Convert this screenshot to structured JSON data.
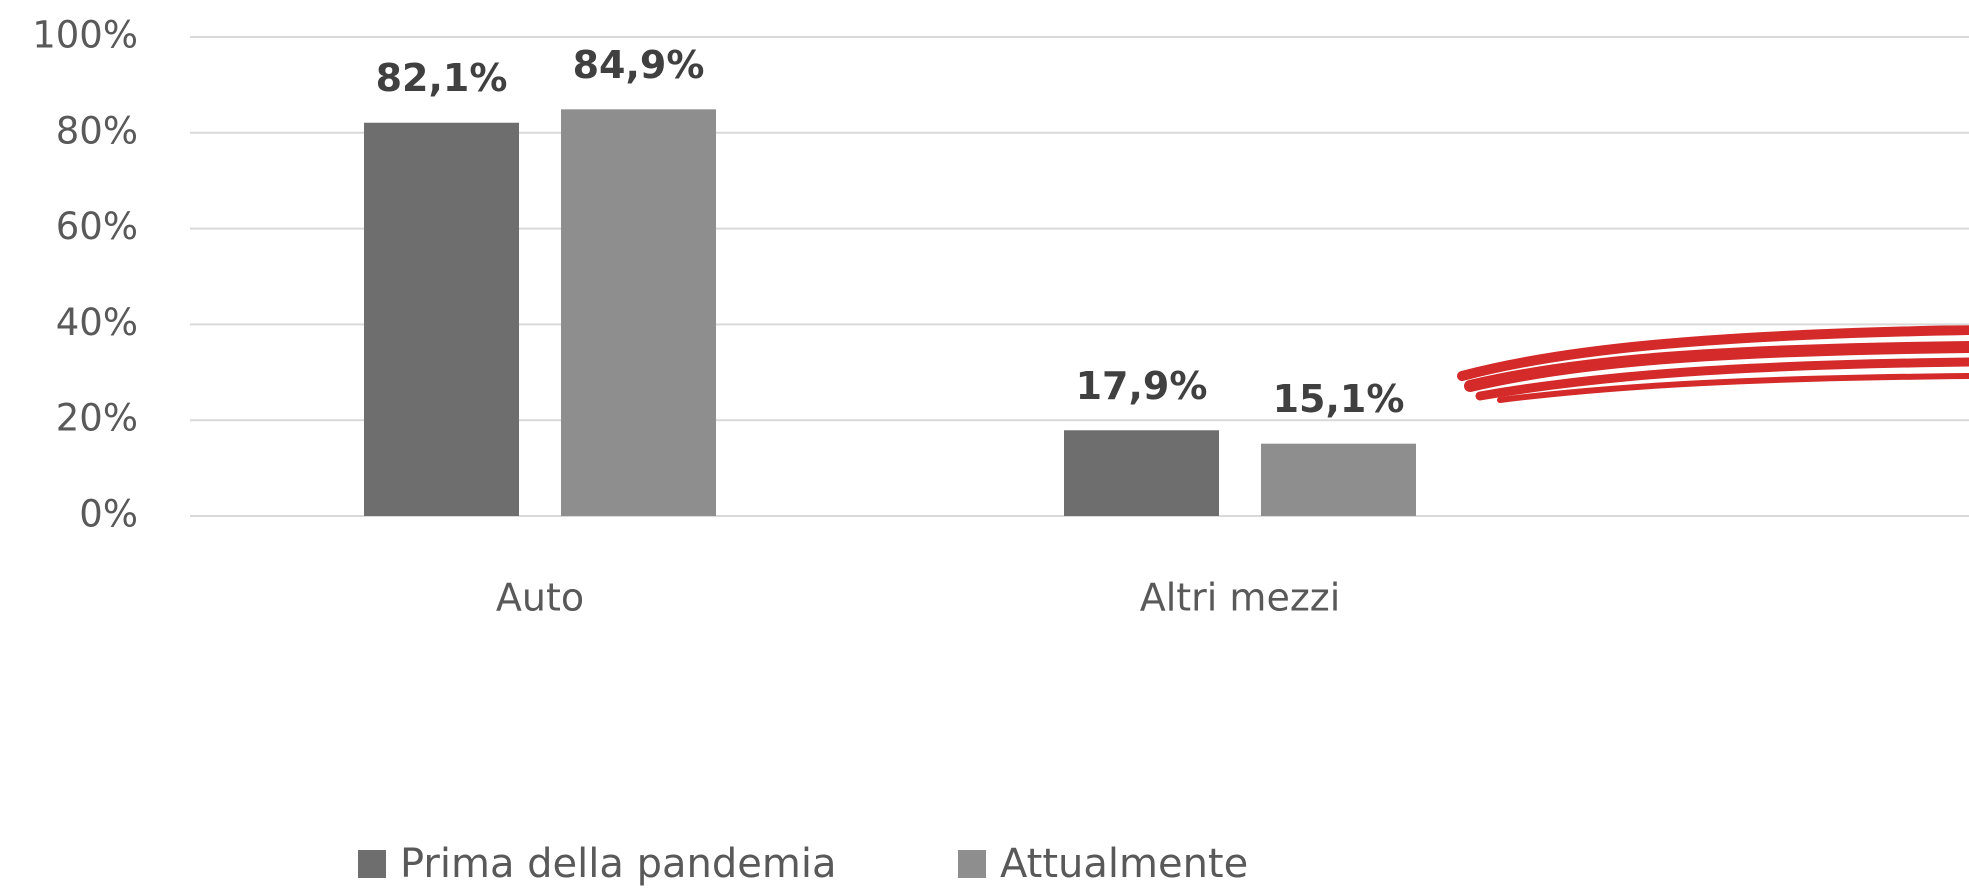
{
  "chart_data": {
    "type": "bar",
    "categories": [
      "Auto",
      "Altri mezzi"
    ],
    "series": [
      {
        "name": "Prima della pandemia",
        "color": "#6e6e6e",
        "values": [
          82.1,
          17.9
        ],
        "value_labels": [
          "82,1%",
          "17,9%"
        ]
      },
      {
        "name": "Attualmente",
        "color": "#8e8e8e",
        "values": [
          84.9,
          15.1
        ],
        "value_labels": [
          "84,9%",
          "15,1%"
        ]
      }
    ],
    "ylim": [
      0,
      100
    ],
    "yticks": [
      {
        "value": 0,
        "label": "0%"
      },
      {
        "value": 20,
        "label": "20%"
      },
      {
        "value": 40,
        "label": "40%"
      },
      {
        "value": 60,
        "label": "60%"
      },
      {
        "value": 80,
        "label": "80%"
      },
      {
        "value": 100,
        "label": "100%"
      }
    ],
    "grid": true,
    "legend": "bottom"
  }
}
